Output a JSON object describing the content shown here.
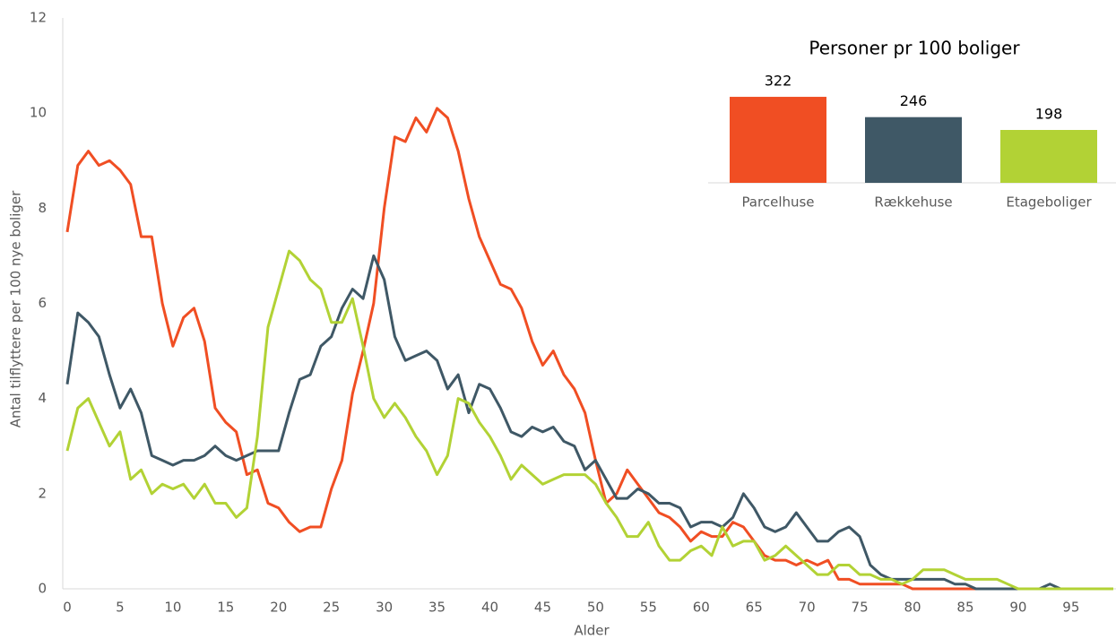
{
  "chart_data": [
    {
      "type": "line",
      "xlabel": "Alder",
      "ylabel": "Antal tilflyttere per 100 nye boliger",
      "x": [
        0,
        1,
        2,
        3,
        4,
        5,
        6,
        7,
        8,
        9,
        10,
        11,
        12,
        13,
        14,
        15,
        16,
        17,
        18,
        19,
        20,
        21,
        22,
        23,
        24,
        25,
        26,
        27,
        28,
        29,
        30,
        31,
        32,
        33,
        34,
        35,
        36,
        37,
        38,
        39,
        40,
        41,
        42,
        43,
        44,
        45,
        46,
        47,
        48,
        49,
        50,
        51,
        52,
        53,
        54,
        55,
        56,
        57,
        58,
        59,
        60,
        61,
        62,
        63,
        64,
        65,
        66,
        67,
        68,
        69,
        70,
        71,
        72,
        73,
        74,
        75,
        76,
        77,
        78,
        79,
        80,
        81,
        82,
        83,
        84,
        85,
        86,
        87,
        88,
        89,
        90,
        91,
        92,
        93,
        94,
        95,
        96,
        97,
        98,
        99
      ],
      "series": [
        {
          "color": "#f04e23",
          "values": [
            7.5,
            8.9,
            9.2,
            8.9,
            9.0,
            8.8,
            8.5,
            7.4,
            7.4,
            6.0,
            5.1,
            5.7,
            5.9,
            5.2,
            3.8,
            3.5,
            3.3,
            2.4,
            2.5,
            1.8,
            1.7,
            1.4,
            1.2,
            1.3,
            1.3,
            2.1,
            2.7,
            4.1,
            5.0,
            6.0,
            8.0,
            9.5,
            9.4,
            9.9,
            9.6,
            10.1,
            9.9,
            9.2,
            8.2,
            7.4,
            6.9,
            6.4,
            6.3,
            5.9,
            5.2,
            4.7,
            5.0,
            4.5,
            4.2,
            3.7,
            2.7,
            1.8,
            2.0,
            2.5,
            2.2,
            1.9,
            1.6,
            1.5,
            1.3,
            1.0,
            1.2,
            1.1,
            1.1,
            1.4,
            1.3,
            1.0,
            0.7,
            0.6,
            0.6,
            0.5,
            0.6,
            0.5,
            0.6,
            0.2,
            0.2,
            0.1,
            0.1,
            0.1,
            0.1,
            0.1,
            0,
            0,
            0,
            0,
            0,
            0,
            0,
            0,
            0,
            0,
            0,
            0,
            0,
            0,
            0,
            0,
            0,
            0,
            0,
            0
          ]
        },
        {
          "color": "#3f5866",
          "values": [
            4.3,
            5.8,
            5.6,
            5.3,
            4.5,
            3.8,
            4.2,
            3.7,
            2.8,
            2.7,
            2.6,
            2.7,
            2.7,
            2.8,
            3.0,
            2.8,
            2.7,
            2.8,
            2.9,
            2.9,
            2.9,
            3.7,
            4.4,
            4.5,
            5.1,
            5.3,
            5.9,
            6.3,
            6.1,
            7.0,
            6.5,
            5.3,
            4.8,
            4.9,
            5.0,
            4.8,
            4.2,
            4.5,
            3.7,
            4.3,
            4.2,
            3.8,
            3.3,
            3.2,
            3.4,
            3.3,
            3.4,
            3.1,
            3.0,
            2.5,
            2.7,
            2.3,
            1.9,
            1.9,
            2.1,
            2.0,
            1.8,
            1.8,
            1.7,
            1.3,
            1.4,
            1.4,
            1.3,
            1.5,
            2.0,
            1.7,
            1.3,
            1.2,
            1.3,
            1.6,
            1.3,
            1.0,
            1.0,
            1.2,
            1.3,
            1.1,
            0.5,
            0.3,
            0.2,
            0.2,
            0.2,
            0.2,
            0.2,
            0.2,
            0.1,
            0.1,
            0,
            0,
            0,
            0,
            0,
            0,
            0,
            0.1,
            0,
            0,
            0,
            0,
            0,
            0
          ]
        },
        {
          "color": "#b2d235",
          "values": [
            2.9,
            3.8,
            4.0,
            3.5,
            3.0,
            3.3,
            2.3,
            2.5,
            2.0,
            2.2,
            2.1,
            2.2,
            1.9,
            2.2,
            1.8,
            1.8,
            1.5,
            1.7,
            3.2,
            5.5,
            6.3,
            7.1,
            6.9,
            6.5,
            6.3,
            5.6,
            5.6,
            6.1,
            5.1,
            4.0,
            3.6,
            3.9,
            3.6,
            3.2,
            2.9,
            2.4,
            2.8,
            4.0,
            3.9,
            3.5,
            3.2,
            2.8,
            2.3,
            2.6,
            2.4,
            2.2,
            2.3,
            2.4,
            2.4,
            2.4,
            2.2,
            1.8,
            1.5,
            1.1,
            1.1,
            1.4,
            0.9,
            0.6,
            0.6,
            0.8,
            0.9,
            0.7,
            1.3,
            0.9,
            1.0,
            1.0,
            0.6,
            0.7,
            0.9,
            0.7,
            0.5,
            0.3,
            0.3,
            0.5,
            0.5,
            0.3,
            0.3,
            0.2,
            0.2,
            0.1,
            0.2,
            0.4,
            0.4,
            0.4,
            0.3,
            0.2,
            0.2,
            0.2,
            0.2,
            0.1,
            0,
            0,
            0,
            0,
            0,
            0,
            0,
            0,
            0,
            0
          ]
        }
      ],
      "xlim": [
        0,
        99
      ],
      "xticks": [
        0,
        5,
        10,
        15,
        20,
        25,
        30,
        35,
        40,
        45,
        50,
        55,
        60,
        65,
        70,
        75,
        80,
        85,
        90,
        95
      ],
      "ylim": [
        0,
        12
      ],
      "yticks": [
        0,
        2,
        4,
        6,
        8,
        10,
        12
      ],
      "grid": false
    },
    {
      "type": "bar",
      "title": "Personer pr 100 boliger",
      "categories": [
        "Parcelhuse",
        "Rækkehuse",
        "Etageboliger"
      ],
      "values": [
        322,
        246,
        198
      ],
      "colors": [
        "#f04e23",
        "#3f5866",
        "#b2d235"
      ]
    }
  ]
}
